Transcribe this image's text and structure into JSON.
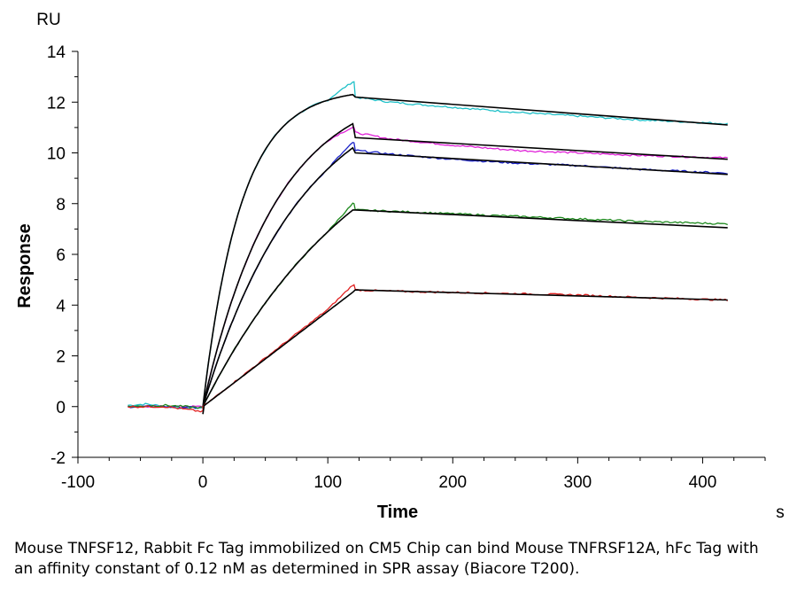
{
  "chart_data": {
    "type": "line",
    "ylabel": "Response",
    "xlabel": "Time",
    "y_unit": "RU",
    "x_unit": "s",
    "xlim": [
      -100,
      450
    ],
    "ylim": [
      -2,
      14
    ],
    "x_ticks": [
      -100,
      0,
      100,
      200,
      300,
      400
    ],
    "y_ticks": [
      -2,
      0,
      2,
      4,
      6,
      8,
      10,
      12,
      14
    ],
    "grid": false,
    "series_color_default_fit": "#000000",
    "series": [
      {
        "color": "#1fc0c8",
        "fit_color": "#000000",
        "baseline": [
          [
            -60,
            0.05
          ],
          [
            -45,
            0.1
          ],
          [
            -30,
            0.0
          ],
          [
            -15,
            -0.05
          ],
          [
            0,
            -0.05
          ]
        ],
        "assoc_max": 12.3,
        "assoc_k": 0.033,
        "observed_peak": 12.8,
        "dissoc": [
          [
            122,
            12.2
          ],
          [
            150,
            12.0
          ],
          [
            200,
            11.8
          ],
          [
            250,
            11.6
          ],
          [
            300,
            11.45
          ],
          [
            350,
            11.3
          ],
          [
            420,
            11.15
          ]
        ],
        "fit_dissoc": [
          [
            122,
            12.2
          ],
          [
            420,
            11.1
          ]
        ]
      },
      {
        "color": "#e020d8",
        "fit_color": "#000000",
        "baseline": [
          [
            -60,
            0.0
          ],
          [
            -30,
            0.0
          ],
          [
            0,
            0.0
          ]
        ],
        "assoc_max": 11.15,
        "assoc_k": 0.017,
        "observed_peak": 11.0,
        "dissoc": [
          [
            122,
            10.8
          ],
          [
            150,
            10.55
          ],
          [
            200,
            10.3
          ],
          [
            250,
            10.1
          ],
          [
            300,
            10.0
          ],
          [
            350,
            9.9
          ],
          [
            420,
            9.8
          ]
        ],
        "fit_dissoc": [
          [
            122,
            10.6
          ],
          [
            420,
            9.75
          ]
        ]
      },
      {
        "color": "#1a22c8",
        "fit_color": "#000000",
        "baseline": [
          [
            -60,
            0.0
          ],
          [
            -30,
            0.0
          ],
          [
            0,
            -0.05
          ]
        ],
        "assoc_max": 10.2,
        "assoc_k": 0.0125,
        "observed_peak": 10.4,
        "dissoc": [
          [
            122,
            10.1
          ],
          [
            150,
            9.95
          ],
          [
            200,
            9.75
          ],
          [
            250,
            9.6
          ],
          [
            300,
            9.5
          ],
          [
            350,
            9.35
          ],
          [
            420,
            9.2
          ]
        ],
        "fit_dissoc": [
          [
            122,
            10.0
          ],
          [
            420,
            9.15
          ]
        ]
      },
      {
        "color": "#1e8a1e",
        "fit_color": "#000000",
        "baseline": [
          [
            -60,
            0.0
          ],
          [
            -30,
            0.05
          ],
          [
            0,
            -0.05
          ]
        ],
        "assoc_max": 7.75,
        "assoc_k": 0.0075,
        "observed_peak": 8.0,
        "dissoc": [
          [
            122,
            7.75
          ],
          [
            150,
            7.7
          ],
          [
            200,
            7.6
          ],
          [
            250,
            7.5
          ],
          [
            300,
            7.4
          ],
          [
            350,
            7.3
          ],
          [
            420,
            7.2
          ]
        ],
        "fit_dissoc": [
          [
            122,
            7.75
          ],
          [
            420,
            7.05
          ]
        ]
      },
      {
        "color": "#e02020",
        "fit_color": "#000000",
        "baseline": [
          [
            -60,
            0.0
          ],
          [
            -30,
            0.0
          ],
          [
            0,
            -0.2
          ]
        ],
        "assoc_max": 4.6,
        "assoc_k": 0.0,
        "observed_peak": 4.8,
        "dissoc": [
          [
            122,
            4.6
          ],
          [
            150,
            4.55
          ],
          [
            200,
            4.5
          ],
          [
            250,
            4.45
          ],
          [
            300,
            4.4
          ],
          [
            350,
            4.3
          ],
          [
            420,
            4.2
          ]
        ],
        "fit_dissoc": [
          [
            122,
            4.6
          ],
          [
            420,
            4.2
          ]
        ]
      }
    ]
  },
  "caption": "Mouse TNFSF12, Rabbit Fc Tag immobilized on CM5 Chip can bind Mouse TNFRSF12A, hFc Tag with an affinity constant of 0.12 nM as determined in SPR assay (Biacore T200)."
}
